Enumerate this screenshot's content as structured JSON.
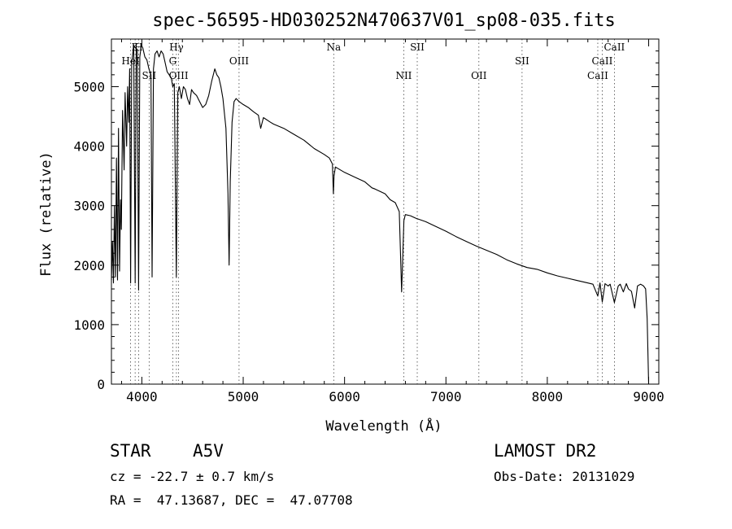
{
  "chart_data": {
    "type": "line",
    "title": "spec-56595-HD030252N470637V01_sp08-035.fits",
    "xlabel": "Wavelength (Å)",
    "ylabel": "Flux (relative)",
    "xlim": [
      3700,
      9100
    ],
    "ylim": [
      0,
      5800
    ],
    "xticks": [
      4000,
      5000,
      6000,
      7000,
      8000,
      9000
    ],
    "yticks": [
      0,
      1000,
      2000,
      3000,
      4000,
      5000
    ],
    "grid": false,
    "line_color": "#000000",
    "line_markers": [
      {
        "label": "HeI",
        "x": 3889,
        "row": 2
      },
      {
        "label": "K",
        "x": 3934,
        "row": 1
      },
      {
        "label": "H",
        "x": 3968,
        "row": 1
      },
      {
        "label": "SII",
        "x": 4072,
        "row": 3
      },
      {
        "label": "Hγ",
        "x": 4341,
        "row": 1
      },
      {
        "label": "G",
        "x": 4305,
        "row": 2
      },
      {
        "label": "OIII",
        "x": 4363,
        "row": 3
      },
      {
        "label": "OIII",
        "x": 4959,
        "row": 2
      },
      {
        "label": "Na",
        "x": 5893,
        "row": 1
      },
      {
        "label": "NII",
        "x": 6584,
        "row": 3
      },
      {
        "label": "SII",
        "x": 6717,
        "row": 1
      },
      {
        "label": "OII",
        "x": 7325,
        "row": 3
      },
      {
        "label": "SII",
        "x": 7751,
        "row": 2
      },
      {
        "label": "CaII",
        "x": 8498,
        "row": 3
      },
      {
        "label": "CaII",
        "x": 8542,
        "row": 2
      },
      {
        "label": "CaII",
        "x": 8662,
        "row": 1
      }
    ],
    "series": [
      {
        "values": [
          [
            3700,
            1750
          ],
          [
            3710,
            2400
          ],
          [
            3720,
            1700
          ],
          [
            3730,
            3000
          ],
          [
            3740,
            1800
          ],
          [
            3750,
            3800
          ],
          [
            3760,
            1750
          ],
          [
            3770,
            4300
          ],
          [
            3780,
            1900
          ],
          [
            3790,
            3100
          ],
          [
            3798,
            2600
          ],
          [
            3810,
            4600
          ],
          [
            3825,
            3600
          ],
          [
            3835,
            4900
          ],
          [
            3850,
            4000
          ],
          [
            3860,
            5000
          ],
          [
            3871,
            4400
          ],
          [
            3880,
            5300
          ],
          [
            3889,
            1700
          ],
          [
            3900,
            5400
          ],
          [
            3920,
            5700
          ],
          [
            3934,
            1700
          ],
          [
            3945,
            5650
          ],
          [
            3955,
            5600
          ],
          [
            3968,
            1580
          ],
          [
            3980,
            5500
          ],
          [
            3995,
            5700
          ],
          [
            4010,
            5650
          ],
          [
            4030,
            5500
          ],
          [
            4050,
            5450
          ],
          [
            4070,
            5300
          ],
          [
            4090,
            5200
          ],
          [
            4101,
            1800
          ],
          [
            4115,
            5300
          ],
          [
            4130,
            5550
          ],
          [
            4150,
            5600
          ],
          [
            4170,
            5500
          ],
          [
            4190,
            5600
          ],
          [
            4210,
            5550
          ],
          [
            4230,
            5400
          ],
          [
            4250,
            5250
          ],
          [
            4270,
            5200
          ],
          [
            4290,
            5150
          ],
          [
            4305,
            5000
          ],
          [
            4320,
            5050
          ],
          [
            4340,
            1800
          ],
          [
            4355,
            4900
          ],
          [
            4370,
            5000
          ],
          [
            4390,
            4800
          ],
          [
            4410,
            5000
          ],
          [
            4430,
            4950
          ],
          [
            4450,
            4800
          ],
          [
            4471,
            4700
          ],
          [
            4490,
            4950
          ],
          [
            4510,
            4900
          ],
          [
            4540,
            4850
          ],
          [
            4570,
            4750
          ],
          [
            4600,
            4650
          ],
          [
            4630,
            4700
          ],
          [
            4660,
            4850
          ],
          [
            4690,
            5100
          ],
          [
            4720,
            5300
          ],
          [
            4740,
            5200
          ],
          [
            4760,
            5150
          ],
          [
            4780,
            5000
          ],
          [
            4800,
            4800
          ],
          [
            4830,
            4300
          ],
          [
            4850,
            3200
          ],
          [
            4861,
            2000
          ],
          [
            4872,
            3400
          ],
          [
            4890,
            4400
          ],
          [
            4910,
            4750
          ],
          [
            4930,
            4800
          ],
          [
            4960,
            4750
          ],
          [
            5000,
            4700
          ],
          [
            5050,
            4650
          ],
          [
            5100,
            4580
          ],
          [
            5150,
            4520
          ],
          [
            5172,
            4300
          ],
          [
            5200,
            4480
          ],
          [
            5270,
            4400
          ],
          [
            5300,
            4370
          ],
          [
            5400,
            4300
          ],
          [
            5500,
            4200
          ],
          [
            5600,
            4100
          ],
          [
            5700,
            3960
          ],
          [
            5800,
            3860
          ],
          [
            5850,
            3800
          ],
          [
            5880,
            3700
          ],
          [
            5890,
            3200
          ],
          [
            5896,
            3500
          ],
          [
            5910,
            3650
          ],
          [
            6000,
            3560
          ],
          [
            6100,
            3480
          ],
          [
            6200,
            3400
          ],
          [
            6270,
            3300
          ],
          [
            6300,
            3280
          ],
          [
            6400,
            3200
          ],
          [
            6450,
            3100
          ],
          [
            6500,
            3050
          ],
          [
            6540,
            2900
          ],
          [
            6563,
            1550
          ],
          [
            6585,
            2750
          ],
          [
            6600,
            2850
          ],
          [
            6650,
            2830
          ],
          [
            6700,
            2790
          ],
          [
            6800,
            2730
          ],
          [
            6900,
            2650
          ],
          [
            7000,
            2570
          ],
          [
            7100,
            2480
          ],
          [
            7200,
            2400
          ],
          [
            7300,
            2320
          ],
          [
            7400,
            2250
          ],
          [
            7500,
            2180
          ],
          [
            7600,
            2090
          ],
          [
            7700,
            2020
          ],
          [
            7800,
            1960
          ],
          [
            7900,
            1930
          ],
          [
            8000,
            1870
          ],
          [
            8100,
            1820
          ],
          [
            8200,
            1780
          ],
          [
            8300,
            1740
          ],
          [
            8400,
            1700
          ],
          [
            8450,
            1680
          ],
          [
            8498,
            1480
          ],
          [
            8520,
            1700
          ],
          [
            8542,
            1380
          ],
          [
            8570,
            1690
          ],
          [
            8600,
            1650
          ],
          [
            8620,
            1680
          ],
          [
            8662,
            1370
          ],
          [
            8700,
            1650
          ],
          [
            8720,
            1680
          ],
          [
            8750,
            1550
          ],
          [
            8780,
            1690
          ],
          [
            8800,
            1600
          ],
          [
            8830,
            1560
          ],
          [
            8862,
            1280
          ],
          [
            8890,
            1650
          ],
          [
            8920,
            1680
          ],
          [
            8950,
            1650
          ],
          [
            8970,
            1600
          ],
          [
            8985,
            1100
          ],
          [
            9000,
            0
          ]
        ]
      }
    ]
  },
  "info": {
    "object_type": "STAR",
    "subclass": "A5V",
    "survey": "LAMOST DR2",
    "redshift": "cz = -22.7 ± 0.7 km/s",
    "obs_date": "Obs-Date: 20131029",
    "coords": "RA =  47.13687, DEC =  47.07708"
  }
}
